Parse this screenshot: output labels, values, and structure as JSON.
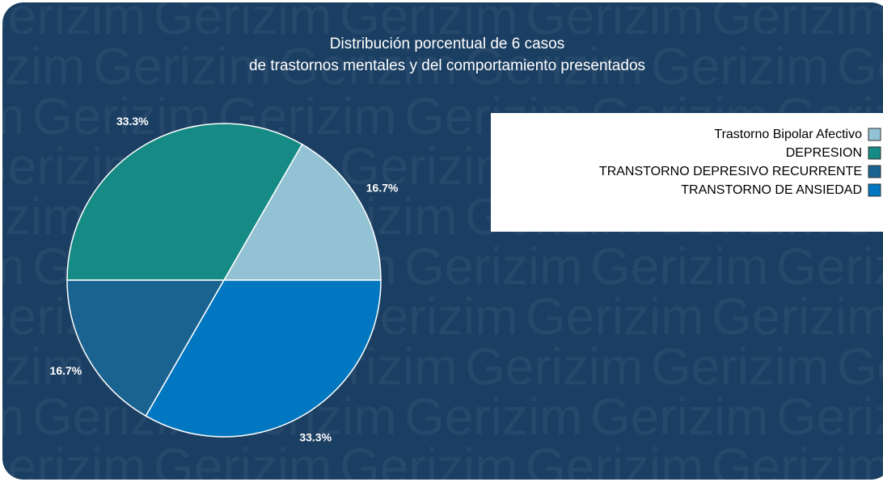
{
  "watermark": "Gerizim",
  "chart_data": {
    "type": "pie",
    "title": [
      "Distribución porcentual de 6 casos",
      "de trastornos mentales y del comportamiento presentados"
    ],
    "categories": [
      "Trastorno Bipolar Afectivo",
      "DEPRESION",
      "TRANSTORNO DEPRESIVO RECURRENTE",
      "TRANSTORNO DE ANSIEDAD"
    ],
    "values": [
      16.7,
      33.3,
      16.7,
      33.3
    ],
    "value_labels": [
      "16.7%",
      "33.3%",
      "16.7%",
      "33.3%"
    ],
    "colors": [
      "#93c2d4",
      "#168a84",
      "#1a6391",
      "#0077c0"
    ],
    "legend": "top-right"
  }
}
